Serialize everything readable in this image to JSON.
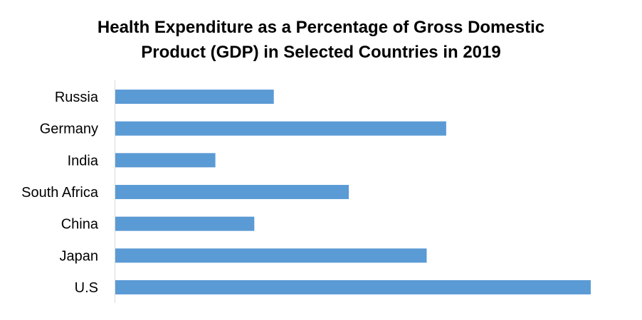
{
  "chart_data": {
    "type": "bar",
    "orientation": "horizontal",
    "title_lines": [
      "Health Expenditure as a Percentage of Gross Domestic",
      "Product (GDP)  in Selected Countries in 2019"
    ],
    "categories": [
      "Russia",
      "Germany",
      "India",
      "South Africa",
      "China",
      "Japan",
      "U.S"
    ],
    "values": [
      5.7,
      11.9,
      3.6,
      8.4,
      5.0,
      11.2,
      17.1
    ],
    "xlim": [
      0,
      17.1
    ],
    "bar_color": "#5b9bd5",
    "axis_color": "#d9d9d9",
    "grid": false,
    "legend": "none"
  }
}
